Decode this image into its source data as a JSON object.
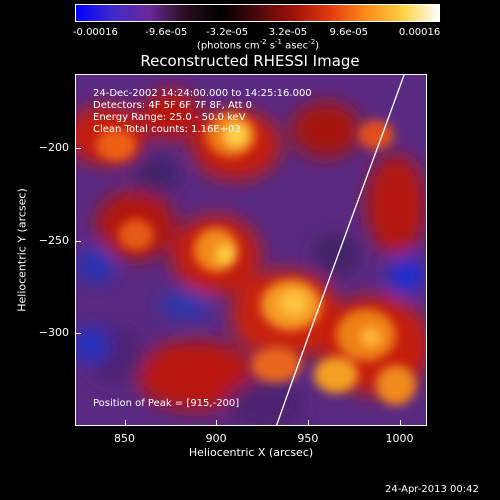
{
  "colorbar": {
    "gradient_stops": [
      "#0000ff",
      "#3d2bc9",
      "#6a2a9a",
      "#2a0f1e",
      "#000000",
      "#4a0a0a",
      "#a0100a",
      "#e23a10",
      "#ff8c1a",
      "#ffd040",
      "#ffffff"
    ],
    "ticks": [
      "-0.00016",
      "-9.6e-05",
      "-3.2e-05",
      "3.2e-05",
      "9.6e-05",
      "0.00016"
    ],
    "units": "(photons cm",
    "units_exp1": "-2",
    "units_mid": " s",
    "units_exp2": "-1",
    "units_mid2": " asec",
    "units_exp3": "-2",
    "units_end": ")"
  },
  "title": "Reconstructed RHESSI Image",
  "info": {
    "line1": "24-Dec-2002 14:24:00.000 to 14:25:16.000",
    "line2": "Detectors: 4F 5F 6F 7F 8F, Att 0",
    "line3": "Energy Range: 25.0 - 50.0 keV",
    "line4": "Clean    Total counts: 1.16E+03",
    "peak": "Position of Peak = [915,-200]"
  },
  "axes": {
    "x_label": "Heliocentric X (arcsec)",
    "y_label": "Heliocentric Y (arcsec)",
    "x_ticks": [
      "850",
      "900",
      "950",
      "1000"
    ],
    "y_ticks": [
      "-200",
      "-250",
      "-300"
    ],
    "x_range": [
      823,
      1015
    ],
    "y_range": [
      -350,
      -160
    ]
  },
  "timestamp": "24-Apr-2013 00:42"
}
